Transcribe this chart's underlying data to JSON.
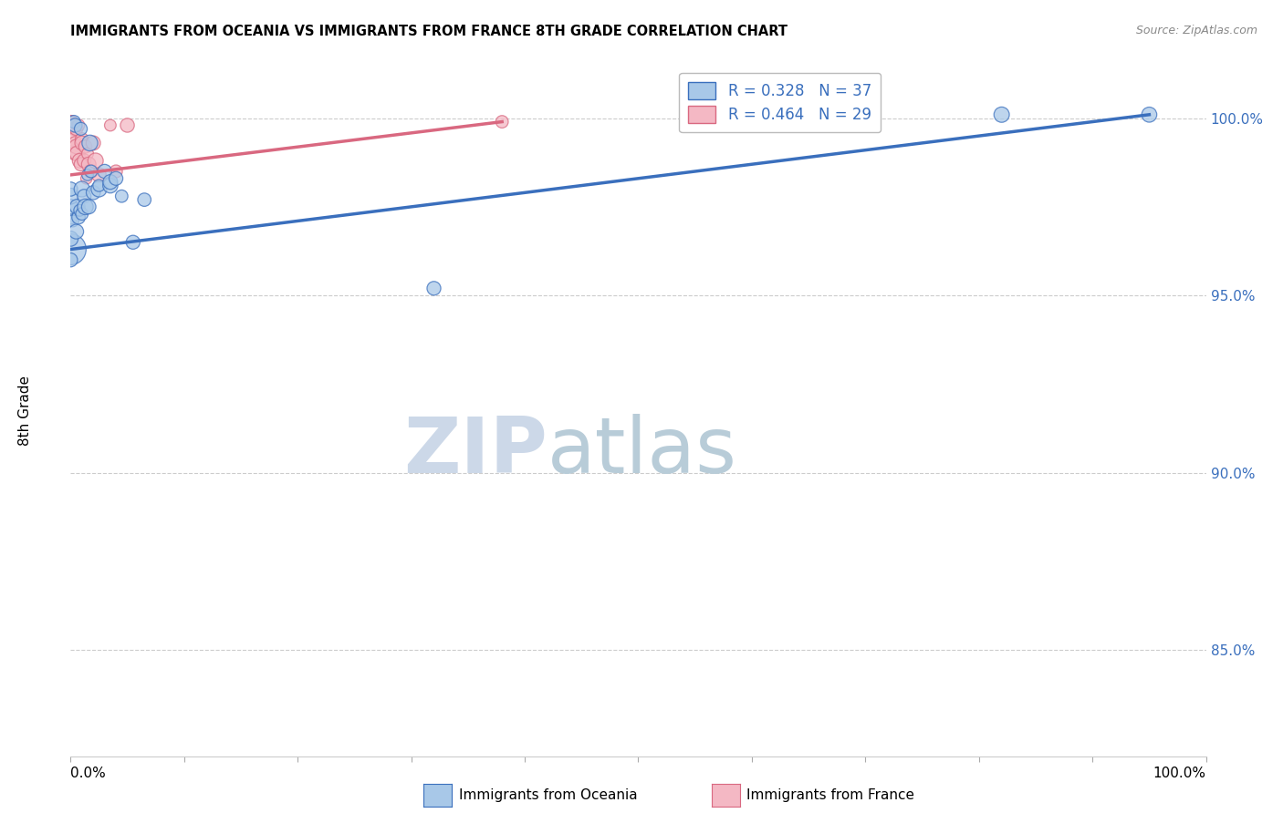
{
  "title": "IMMIGRANTS FROM OCEANIA VS IMMIGRANTS FROM FRANCE 8TH GRADE CORRELATION CHART",
  "source": "Source: ZipAtlas.com",
  "ylabel": "8th Grade",
  "y_ticks": [
    0.85,
    0.9,
    0.95,
    1.0
  ],
  "y_tick_labels_right": [
    "85.0%",
    "90.0%",
    "95.0%",
    "100.0%"
  ],
  "x_range": [
    0.0,
    1.0
  ],
  "y_range": [
    0.82,
    1.015
  ],
  "legend_r_blue": "R = 0.328",
  "legend_n_blue": "N = 37",
  "legend_r_pink": "R = 0.464",
  "legend_n_pink": "N = 29",
  "blue_color": "#a8c8e8",
  "pink_color": "#f4b8c4",
  "trendline_blue": "#3a6fbd",
  "trendline_pink": "#d96880",
  "blue_scatter": [
    [
      0.0,
      0.963
    ],
    [
      0.0,
      0.966
    ],
    [
      0.0,
      0.972
    ],
    [
      0.0,
      0.975
    ],
    [
      0.0,
      0.978
    ],
    [
      0.0,
      0.98
    ],
    [
      0.0,
      0.96
    ],
    [
      0.002,
      0.971
    ],
    [
      0.003,
      0.999
    ],
    [
      0.004,
      0.998
    ],
    [
      0.005,
      0.968
    ],
    [
      0.006,
      0.975
    ],
    [
      0.007,
      0.972
    ],
    [
      0.008,
      0.974
    ],
    [
      0.009,
      0.997
    ],
    [
      0.01,
      0.98
    ],
    [
      0.01,
      0.973
    ],
    [
      0.012,
      0.978
    ],
    [
      0.013,
      0.975
    ],
    [
      0.015,
      0.984
    ],
    [
      0.016,
      0.975
    ],
    [
      0.017,
      0.993
    ],
    [
      0.018,
      0.985
    ],
    [
      0.02,
      0.979
    ],
    [
      0.025,
      0.98
    ],
    [
      0.025,
      0.981
    ],
    [
      0.03,
      0.985
    ],
    [
      0.035,
      0.981
    ],
    [
      0.035,
      0.982
    ],
    [
      0.04,
      0.983
    ],
    [
      0.045,
      0.978
    ],
    [
      0.055,
      0.965
    ],
    [
      0.065,
      0.977
    ],
    [
      0.32,
      0.952
    ],
    [
      0.6,
      0.999
    ],
    [
      0.82,
      1.001
    ],
    [
      0.95,
      1.001
    ]
  ],
  "pink_scatter": [
    [
      0.0,
      0.999
    ],
    [
      0.0,
      0.998
    ],
    [
      0.001,
      0.999
    ],
    [
      0.002,
      0.998
    ],
    [
      0.003,
      0.997
    ],
    [
      0.003,
      0.994
    ],
    [
      0.004,
      0.993
    ],
    [
      0.004,
      0.99
    ],
    [
      0.005,
      0.992
    ],
    [
      0.005,
      0.997
    ],
    [
      0.006,
      0.99
    ],
    [
      0.007,
      0.998
    ],
    [
      0.008,
      0.988
    ],
    [
      0.009,
      0.987
    ],
    [
      0.01,
      0.994
    ],
    [
      0.01,
      0.993
    ],
    [
      0.012,
      0.988
    ],
    [
      0.013,
      0.992
    ],
    [
      0.014,
      0.983
    ],
    [
      0.015,
      0.99
    ],
    [
      0.016,
      0.987
    ],
    [
      0.018,
      0.985
    ],
    [
      0.02,
      0.993
    ],
    [
      0.022,
      0.988
    ],
    [
      0.025,
      0.984
    ],
    [
      0.035,
      0.998
    ],
    [
      0.04,
      0.985
    ],
    [
      0.05,
      0.998
    ],
    [
      0.38,
      0.999
    ]
  ],
  "blue_trendline": [
    [
      0.0,
      0.963
    ],
    [
      0.95,
      1.001
    ]
  ],
  "pink_trendline": [
    [
      0.0,
      0.984
    ],
    [
      0.38,
      0.999
    ]
  ],
  "big_blue_point": [
    0.0,
    0.964
  ],
  "big_blue_size": 800,
  "watermark_zip": "ZIP",
  "watermark_atlas": "atlas",
  "watermark_color": "#ccd8e8",
  "grid_color": "#cccccc",
  "grid_style": "--"
}
